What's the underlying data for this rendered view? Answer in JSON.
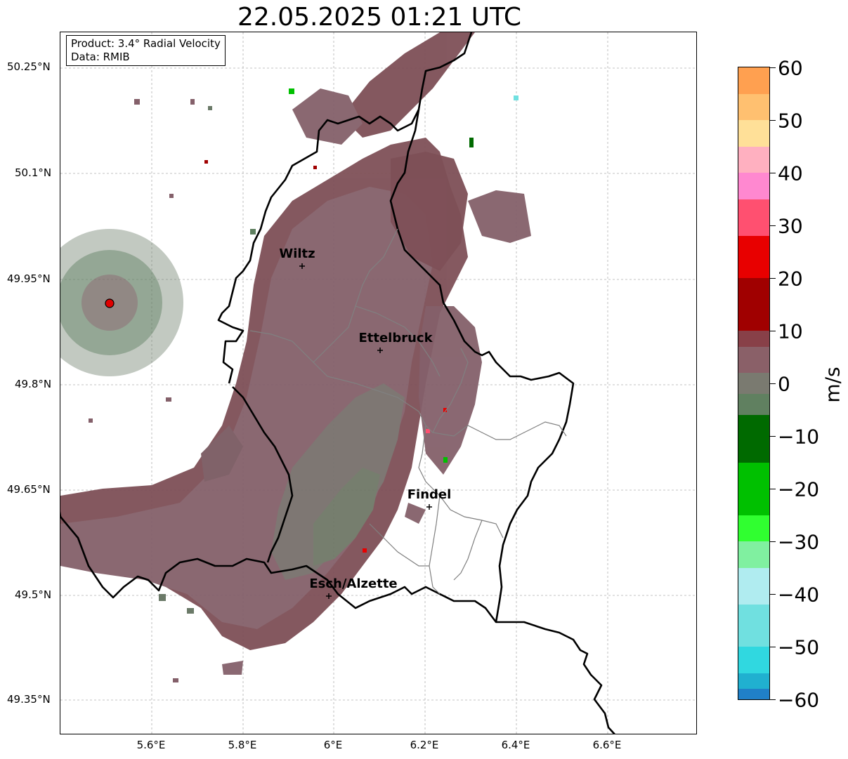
{
  "title": "22.05.2025 01:21 UTC",
  "info_box": {
    "product": "Product: 3.4° Radial Velocity",
    "data": "Data: RMIB"
  },
  "lat_labels": [
    "50.25°N",
    "50.1°N",
    "49.95°N",
    "49.8°N",
    "49.65°N",
    "49.5°N",
    "49.35°N"
  ],
  "lon_labels": [
    "5.6°E",
    "5.8°E",
    "6°E",
    "6.2°E",
    "6.4°E",
    "6.6°E"
  ],
  "cities": [
    "Wiltz",
    "Ettelbruck",
    "Findel",
    "Esch/Alzette"
  ],
  "radar_site_color": "#e00000",
  "colorbar": {
    "unit": "m/s",
    "ticks": [
      "60",
      "50",
      "40",
      "30",
      "20",
      "10",
      "0",
      "−10",
      "−20",
      "−30",
      "−40",
      "−50",
      "−60"
    ],
    "range": [
      -60,
      60
    ],
    "stops": [
      {
        "from": 55,
        "to": 60,
        "color": "#ffa050"
      },
      {
        "from": 50,
        "to": 55,
        "color": "#ffc070"
      },
      {
        "from": 45,
        "to": 50,
        "color": "#ffe098"
      },
      {
        "from": 40,
        "to": 45,
        "color": "#ffb0c0"
      },
      {
        "from": 35,
        "to": 40,
        "color": "#ff88d0"
      },
      {
        "from": 28,
        "to": 35,
        "color": "#ff5070"
      },
      {
        "from": 20,
        "to": 28,
        "color": "#e80000"
      },
      {
        "from": 10,
        "to": 20,
        "color": "#a00000"
      },
      {
        "from": 7,
        "to": 10,
        "color": "#884048"
      },
      {
        "from": 2,
        "to": 7,
        "color": "#8a6068"
      },
      {
        "from": -2,
        "to": 2,
        "color": "#7a7a70"
      },
      {
        "from": -6,
        "to": -2,
        "color": "#608060"
      },
      {
        "from": -15,
        "to": -6,
        "color": "#006a00"
      },
      {
        "from": -25,
        "to": -15,
        "color": "#00c000"
      },
      {
        "from": -30,
        "to": -25,
        "color": "#30ff30"
      },
      {
        "from": -35,
        "to": -30,
        "color": "#80f0a0"
      },
      {
        "from": -42,
        "to": -35,
        "color": "#b0ecf0"
      },
      {
        "from": -50,
        "to": -42,
        "color": "#70e0e0"
      },
      {
        "from": -55,
        "to": -50,
        "color": "#30d8e0"
      },
      {
        "from": -58,
        "to": -55,
        "color": "#20b0d0"
      },
      {
        "from": -60,
        "to": -58,
        "color": "#2080c8"
      }
    ]
  },
  "colors": {
    "echo_maroon": "#7e5057",
    "echo_mauve": "#84606a",
    "echo_gray_green": "#6b7a68",
    "echo_green": "#5f8060"
  }
}
